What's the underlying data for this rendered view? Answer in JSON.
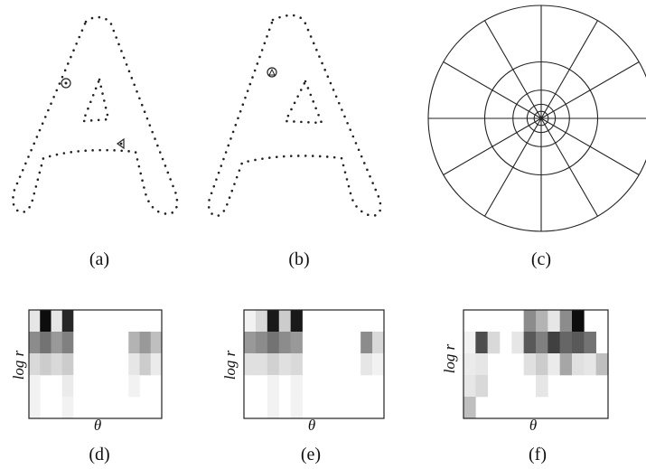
{
  "captions": [
    "(a)",
    "(b)",
    "(c)",
    "(d)",
    "(e)",
    "(f)"
  ],
  "histogram_axes": {
    "ylabel": "log r",
    "xlabel": "θ"
  },
  "polar_bins": {
    "radial_bins": 5,
    "angular_bins": 12
  },
  "histograms": [
    {
      "cols": 12,
      "rows": 5,
      "cells": [
        [
          0.1,
          0.95,
          0.1,
          0.85,
          0,
          0,
          0,
          0,
          0,
          0,
          0,
          0
        ],
        [
          0.45,
          0.55,
          0.4,
          0.5,
          0,
          0,
          0,
          0,
          0,
          0.3,
          0.4,
          0.25
        ],
        [
          0.15,
          0.2,
          0.15,
          0.2,
          0,
          0,
          0,
          0,
          0,
          0.1,
          0.2,
          0.08
        ],
        [
          0.05,
          0,
          0,
          0.08,
          0,
          0,
          0,
          0,
          0,
          0.05,
          0,
          0
        ],
        [
          0.05,
          0,
          0,
          0.05,
          0,
          0,
          0,
          0,
          0,
          0,
          0,
          0
        ]
      ]
    },
    {
      "cols": 12,
      "rows": 5,
      "cells": [
        [
          0.05,
          0.15,
          0.9,
          0.2,
          0.9,
          0,
          0,
          0,
          0,
          0,
          0,
          0
        ],
        [
          0.4,
          0.45,
          0.55,
          0.45,
          0.4,
          0,
          0,
          0,
          0,
          0,
          0.45,
          0.15
        ],
        [
          0.12,
          0.12,
          0.18,
          0.12,
          0.15,
          0,
          0,
          0,
          0,
          0,
          0.1,
          0.05
        ],
        [
          0,
          0,
          0.05,
          0,
          0.05,
          0,
          0,
          0,
          0,
          0,
          0,
          0
        ],
        [
          0,
          0,
          0.05,
          0,
          0.05,
          0,
          0,
          0,
          0,
          0,
          0,
          0
        ]
      ]
    },
    {
      "cols": 12,
      "rows": 5,
      "cells": [
        [
          0,
          0,
          0,
          0,
          0,
          0.45,
          0.3,
          0.1,
          0.45,
          0.95,
          0,
          0
        ],
        [
          0.05,
          0.7,
          0.15,
          0,
          0.1,
          0.65,
          0.5,
          0.75,
          0.6,
          0.65,
          0.55,
          0
        ],
        [
          0.08,
          0.1,
          0,
          0,
          0,
          0.12,
          0.2,
          0.08,
          0.35,
          0.12,
          0.1,
          0.25
        ],
        [
          0.1,
          0.15,
          0,
          0,
          0,
          0,
          0.1,
          0,
          0,
          0,
          0,
          0
        ],
        [
          0.25,
          0,
          0,
          0,
          0,
          0,
          0,
          0,
          0,
          0,
          0,
          0
        ]
      ]
    }
  ]
}
